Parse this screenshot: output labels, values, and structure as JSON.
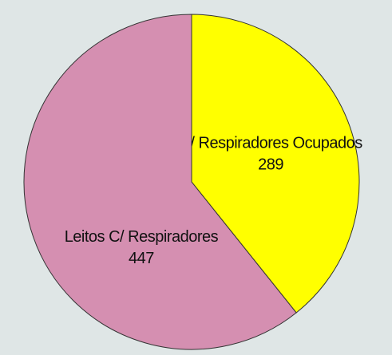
{
  "chart_data": {
    "type": "pie",
    "categories": [
      "C/ Respiradores Ocupados",
      "Leitos C/ Respiradores"
    ],
    "values": [
      289,
      447
    ],
    "colors": [
      "#ffff00",
      "#d58fb1"
    ]
  }
}
